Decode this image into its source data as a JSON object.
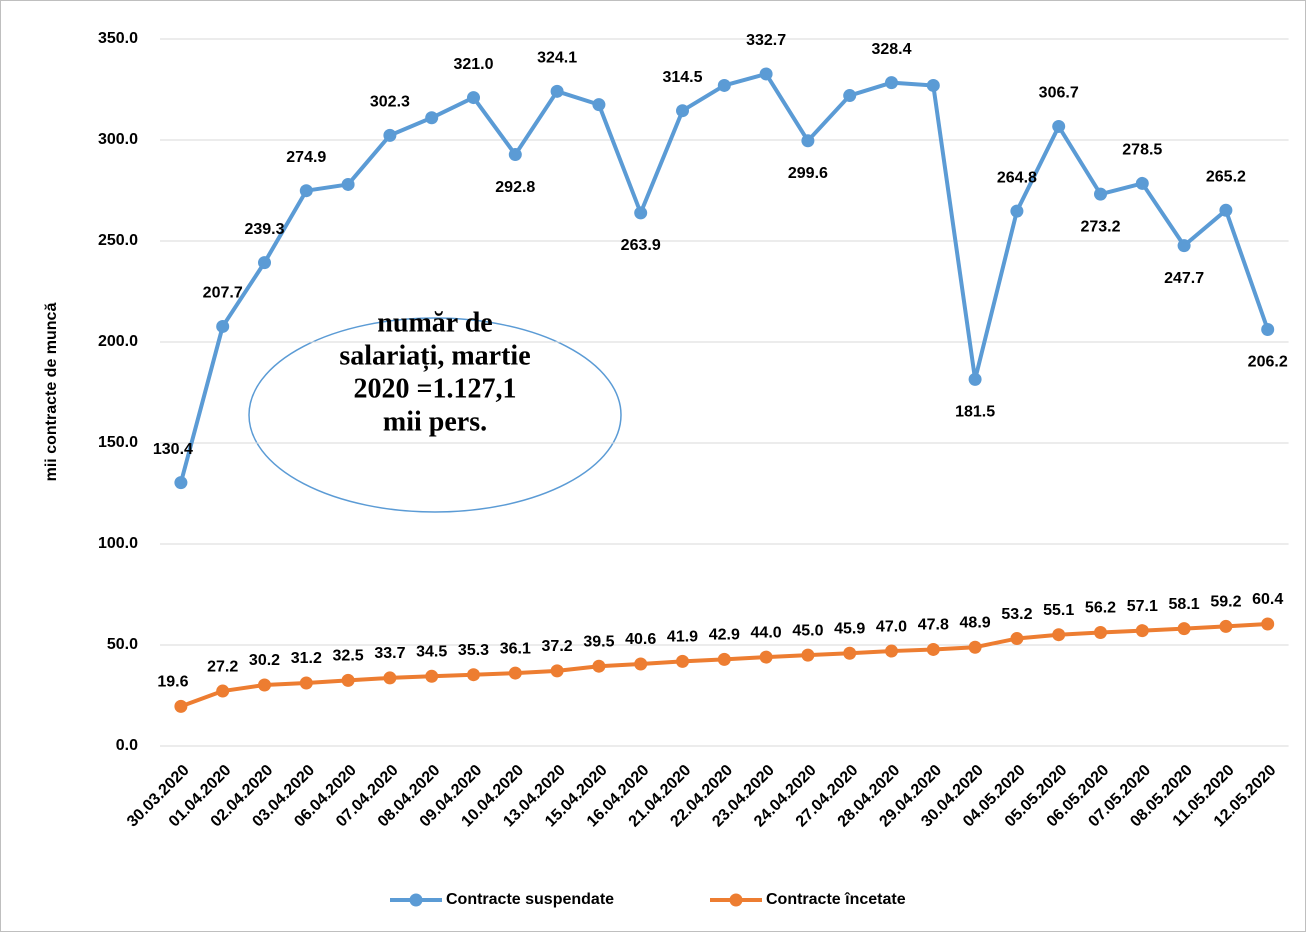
{
  "chart_data": {
    "type": "line",
    "y_label": "mii contracte de muncă",
    "annotation": [
      "număr de",
      "salariați, martie",
      "2020 =1.127,1",
      "mii pers."
    ],
    "categories": [
      "30.03.2020",
      "01.04.2020",
      "02.04.2020",
      "03.04.2020",
      "06.04.2020",
      "07.04.2020",
      "08.04.2020",
      "09.04.2020",
      "10.04.2020",
      "13.04.2020",
      "15.04.2020",
      "16.04.2020",
      "21.04.2020",
      "22.04.2020",
      "23.04.2020",
      "24.04.2020",
      "27.04.2020",
      "28.04.2020",
      "29.04.2020",
      "30.04.2020",
      "04.05.2020",
      "05.05.2020",
      "06.05.2020",
      "07.05.2020",
      "08.05.2020",
      "11.05.2020",
      "12.05.2020"
    ],
    "series": [
      {
        "name": "Contracte suspendate",
        "color": "#5b9bd5",
        "values": [
          130.4,
          207.7,
          239.3,
          274.9,
          278,
          302.3,
          311,
          321.0,
          292.8,
          324.1,
          317.5,
          263.9,
          314.5,
          327,
          332.7,
          299.6,
          322,
          328.4,
          327,
          181.5,
          264.8,
          306.7,
          273.2,
          278.5,
          247.7,
          265.2,
          206.2
        ],
        "value_labels": [
          "130.4",
          "207.7",
          "239.3",
          "274.9",
          null,
          "302.3",
          null,
          "321.0",
          "292.8",
          "324.1",
          null,
          "263.9",
          "314.5",
          null,
          "332.7",
          "299.6",
          null,
          "328.4",
          null,
          "181.5",
          "264.8",
          "306.7",
          "273.2",
          "278.5",
          "247.7",
          "265.2",
          "206.2"
        ]
      },
      {
        "name": "Contracte încetate",
        "color": "#ed7d31",
        "values": [
          19.6,
          27.2,
          30.2,
          31.2,
          32.5,
          33.7,
          34.5,
          35.3,
          36.1,
          37.2,
          39.5,
          40.6,
          41.9,
          42.9,
          44.0,
          45.0,
          45.9,
          47.0,
          47.8,
          48.9,
          53.2,
          55.1,
          56.2,
          57.1,
          58.1,
          59.2,
          60.4
        ],
        "value_labels": [
          "19.6",
          "27.2",
          "30.2",
          "31.2",
          "32.5",
          "33.7",
          "34.5",
          "35.3",
          "36.1",
          "37.2",
          "39.5",
          "40.6",
          "41.9",
          "42.9",
          "44.0",
          "45.0",
          "45.9",
          "47.0",
          "47.8",
          "48.9",
          "53.2",
          "55.1",
          "56.2",
          "57.1",
          "58.1",
          "59.2",
          "60.4"
        ]
      }
    ],
    "ylim": [
      0,
      350
    ],
    "yticks": [
      {
        "value": 0,
        "label": "0.0"
      },
      {
        "value": 50,
        "label": "50.0"
      },
      {
        "value": 100,
        "label": "100.0"
      },
      {
        "value": 150,
        "label": "150.0"
      },
      {
        "value": 200,
        "label": "200.0"
      },
      {
        "value": 250,
        "label": "250.0"
      },
      {
        "value": 300,
        "label": "300.0"
      },
      {
        "value": 350,
        "label": "350.0"
      }
    ],
    "grid": true,
    "legend": "bottom"
  }
}
